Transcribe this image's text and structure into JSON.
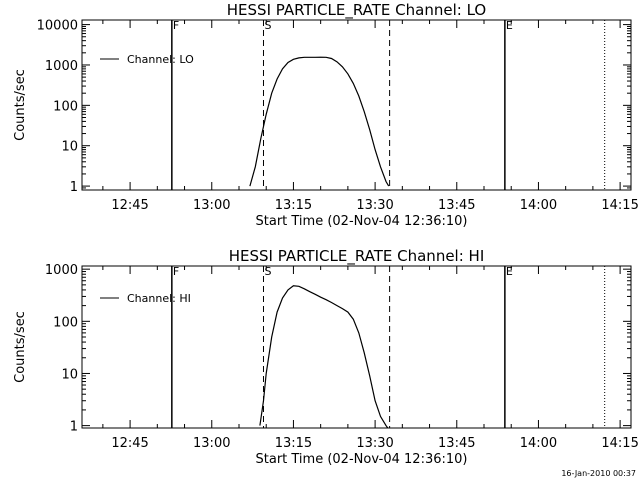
{
  "footer": {
    "date": "16-Jan-2010 00:37"
  },
  "chart_data": [
    {
      "type": "line",
      "title": "HESSI PARTICLE_RATE Channel: LO",
      "xlabel": "Start Time (02-Nov-04 12:36:10)",
      "ylabel": "Counts/sec",
      "y_scale": "log",
      "ylim": [
        0.8,
        13000
      ],
      "xlim": [
        "12:36:10",
        "14:17:00"
      ],
      "yticks": [
        1,
        10,
        100,
        1000,
        10000
      ],
      "ytick_labels": [
        "1",
        "10",
        "100",
        "1000",
        "10000"
      ],
      "xticks": [
        "12:45",
        "13:00",
        "13:15",
        "13:30",
        "13:45",
        "14:00",
        "14:15"
      ],
      "grid": false,
      "legend": {
        "position": "top-left",
        "entries": [
          "Channel: LO"
        ]
      },
      "markers": [
        {
          "label": "F",
          "time": "12:52:40",
          "style": "solid"
        },
        {
          "label": "S",
          "time": "13:09:30",
          "style": "dashed"
        },
        {
          "label": "",
          "time": "13:32:40",
          "style": "dashed"
        },
        {
          "label": "E",
          "time": "13:53:50",
          "style": "solid"
        },
        {
          "label": "",
          "time": "14:12:10",
          "style": "dotted"
        }
      ],
      "series": [
        {
          "name": "Channel: LO",
          "x": [
            "13:07:00",
            "13:08:00",
            "13:09:00",
            "13:10:00",
            "13:11:00",
            "13:12:00",
            "13:13:00",
            "13:14:00",
            "13:15:00",
            "13:16:00",
            "13:17:00",
            "13:18:00",
            "13:19:00",
            "13:20:00",
            "13:21:00",
            "13:22:00",
            "13:23:00",
            "13:24:00",
            "13:25:00",
            "13:26:00",
            "13:27:00",
            "13:28:00",
            "13:29:00",
            "13:30:00",
            "13:31:00",
            "13:32:00",
            "13:32:30"
          ],
          "y": [
            1,
            3,
            15,
            60,
            200,
            450,
            800,
            1150,
            1380,
            1500,
            1550,
            1550,
            1550,
            1560,
            1550,
            1450,
            1200,
            900,
            600,
            350,
            170,
            70,
            25,
            8,
            3,
            1.3,
            1
          ]
        }
      ]
    },
    {
      "type": "line",
      "title": "HESSI PARTICLE_RATE Channel: HI",
      "xlabel": "Start Time (02-Nov-04 12:36:10)",
      "ylabel": "Counts/sec",
      "y_scale": "log",
      "ylim": [
        0.9,
        1150
      ],
      "xlim": [
        "12:36:10",
        "14:17:00"
      ],
      "yticks": [
        1,
        10,
        100,
        1000
      ],
      "ytick_labels": [
        "1",
        "10",
        "100",
        "1000"
      ],
      "xticks": [
        "12:45",
        "13:00",
        "13:15",
        "13:30",
        "13:45",
        "14:00",
        "14:15"
      ],
      "grid": false,
      "legend": {
        "position": "top-left",
        "entries": [
          "Channel: HI"
        ]
      },
      "markers": [
        {
          "label": "F",
          "time": "12:52:40",
          "style": "solid"
        },
        {
          "label": "S",
          "time": "13:09:30",
          "style": "dashed"
        },
        {
          "label": "",
          "time": "13:32:40",
          "style": "dashed"
        },
        {
          "label": "E",
          "time": "13:53:50",
          "style": "solid"
        },
        {
          "label": "",
          "time": "14:12:10",
          "style": "dotted"
        }
      ],
      "series": [
        {
          "name": "Channel: HI",
          "x": [
            "13:08:50",
            "13:09:30",
            "13:10:00",
            "13:11:00",
            "13:12:00",
            "13:13:00",
            "13:14:00",
            "13:15:00",
            "13:16:00",
            "13:17:00",
            "13:18:00",
            "13:19:00",
            "13:20:00",
            "13:21:00",
            "13:22:00",
            "13:23:00",
            "13:24:00",
            "13:25:00",
            "13:26:00",
            "13:27:00",
            "13:28:00",
            "13:29:00",
            "13:30:00",
            "13:31:00",
            "13:32:00",
            "13:32:20"
          ],
          "y": [
            1,
            3,
            10,
            50,
            150,
            280,
            400,
            480,
            470,
            420,
            370,
            330,
            290,
            260,
            230,
            200,
            175,
            150,
            110,
            60,
            25,
            9,
            3,
            1.5,
            1,
            0.9
          ]
        }
      ]
    }
  ]
}
